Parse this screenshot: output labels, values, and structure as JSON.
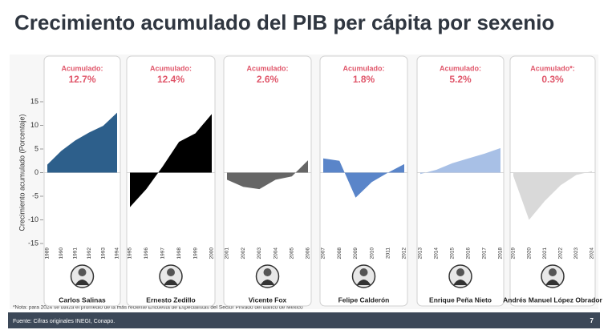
{
  "title": "Crecimiento acumulado del PIB per cápita por sexenio",
  "note": "*Nota: para 2024 se utiliza el promedio de la más reciente Encuesta de Especialistas del Sector Privado del Banco de México",
  "source": "Fuente: Cifras originales INEGI, Conapo.",
  "page_number": "7",
  "chart_data": [
    {
      "type": "area",
      "title": "Acumulado:",
      "subtitle": "12.7%",
      "xlabel": "Carlos Salinas",
      "color": "#2d5f8b",
      "categories": [
        "1989",
        "1990",
        "1991",
        "1992",
        "1993",
        "1994"
      ],
      "values": [
        1.7,
        4.6,
        6.8,
        8.5,
        9.9,
        12.7
      ],
      "ylim": [
        -15,
        15
      ],
      "yticks": [
        -15,
        -10,
        -5,
        0,
        5,
        10,
        15
      ],
      "ylabel": "Crecimiento acumulado (Porcentaje)"
    },
    {
      "type": "area",
      "title": "Acumulado:",
      "subtitle": "12.4%",
      "xlabel": "Ernesto Zedillo",
      "color": "#000000",
      "categories": [
        "1995",
        "1996",
        "1997",
        "1998",
        "1999",
        "2000"
      ],
      "values": [
        -7.3,
        -3.5,
        1.3,
        6.5,
        8.3,
        12.4
      ],
      "ylim": [
        -15,
        15
      ]
    },
    {
      "type": "area",
      "title": "Acumulado:",
      "subtitle": "2.6%",
      "xlabel": "Vicente Fox",
      "color": "#666666",
      "categories": [
        "2001",
        "2002",
        "2003",
        "2004",
        "2005",
        "2006"
      ],
      "values": [
        -1.5,
        -3.0,
        -3.5,
        -1.5,
        -0.8,
        2.6
      ],
      "ylim": [
        -15,
        15
      ]
    },
    {
      "type": "area",
      "title": "Acumulado:",
      "subtitle": "1.8%",
      "xlabel": "Felipe Calderón",
      "color": "#5a85c9",
      "categories": [
        "2007",
        "2008",
        "2009",
        "2010",
        "2011",
        "2012"
      ],
      "values": [
        3.0,
        2.5,
        -5.3,
        -2.0,
        0.0,
        1.8
      ],
      "ylim": [
        -15,
        15
      ]
    },
    {
      "type": "area",
      "title": "Acumulado:",
      "subtitle": "5.2%",
      "xlabel": "Enrique Peña Nieto",
      "color": "#a8c0e6",
      "categories": [
        "2013",
        "2014",
        "2015",
        "2016",
        "2017",
        "2018"
      ],
      "values": [
        -0.3,
        0.6,
        2.0,
        3.0,
        4.0,
        5.2
      ],
      "ylim": [
        -15,
        15
      ]
    },
    {
      "type": "area",
      "title": "Acumulado*:",
      "subtitle": "0.3%",
      "xlabel": "Andrés Manuel López Obrador",
      "color": "#d9d9d9",
      "categories": [
        "2019",
        "2020",
        "2021",
        "2022",
        "2023",
        "2024"
      ],
      "values": [
        -0.7,
        -10.0,
        -6.0,
        -2.7,
        -0.5,
        0.3
      ],
      "ylim": [
        -15,
        15
      ]
    }
  ]
}
